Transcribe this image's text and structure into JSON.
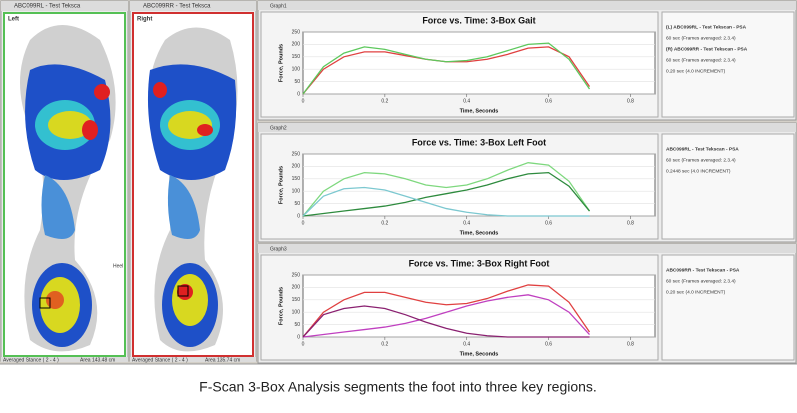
{
  "windows": {
    "left_foot": {
      "title": "ABC099RL - Test Teksca",
      "label": "Left",
      "region_label": "Heel",
      "status": "Averaged Stance ( 2 - 4 )",
      "area": "Area 143.48 cm"
    },
    "right_foot": {
      "title": "ABC099RR - Test Teksca",
      "label": "Right",
      "status": "Averaged Stance ( 2 - 4 )",
      "area": "Area 135.74 cm"
    }
  },
  "graphs": [
    {
      "window_title": "Graph1",
      "chart_data": {
        "type": "line",
        "title": "Force vs. Time: 3-Box Gait",
        "x_label": "Time, Seconds",
        "y_label": "Force, Pounds",
        "x": [
          0,
          0.05,
          0.1,
          0.15,
          0.2,
          0.25,
          0.3,
          0.35,
          0.4,
          0.45,
          0.5,
          0.55,
          0.6,
          0.65,
          0.7
        ],
        "series": [
          {
            "color": "#e04040",
            "values": [
              0,
              100,
              150,
              170,
              170,
              155,
              140,
              130,
              130,
              140,
              160,
              185,
              190,
              150,
              30
            ]
          },
          {
            "color": "#5cc85c",
            "values": [
              0,
              110,
              165,
              190,
              180,
              160,
              140,
              130,
              135,
              150,
              175,
              200,
              205,
              140,
              20
            ]
          }
        ],
        "xlim": [
          0,
          0.86
        ],
        "ylim": [
          0,
          250
        ],
        "xticks": [
          0,
          0.2,
          0.4,
          0.6,
          0.8
        ],
        "yticks": [
          0,
          50,
          100,
          150,
          200,
          250
        ]
      },
      "panel_lines": [
        "(L) ABC099RL - Test Tekscan - PSA",
        "60 sec (Frames averaged: 2.3.4)",
        "(R) ABC099RR - Test Tekscan - PSA",
        "60 sec (Frames averaged: 2.3.4)",
        "0.20 sec (4.0 INCREMENT)"
      ]
    },
    {
      "window_title": "Graph2",
      "chart_data": {
        "type": "line",
        "title": "Force vs. Time: 3-Box Left Foot",
        "x_label": "Time, Seconds",
        "y_label": "Force, Pounds",
        "x": [
          0,
          0.05,
          0.1,
          0.15,
          0.2,
          0.25,
          0.3,
          0.35,
          0.4,
          0.45,
          0.5,
          0.55,
          0.6,
          0.65,
          0.7
        ],
        "series": [
          {
            "color": "#7ed87e",
            "values": [
              0,
              100,
              150,
              175,
              170,
              150,
              125,
              115,
              125,
              150,
              185,
              215,
              205,
              140,
              20
            ]
          },
          {
            "color": "#2e8b3e",
            "values": [
              0,
              10,
              20,
              30,
              40,
              55,
              75,
              90,
              105,
              125,
              150,
              170,
              175,
              120,
              20
            ]
          },
          {
            "color": "#7cc8d0",
            "values": [
              0,
              80,
              110,
              115,
              105,
              80,
              55,
              30,
              15,
              5,
              0,
              0,
              0,
              0,
              0
            ]
          }
        ],
        "xlim": [
          0,
          0.86
        ],
        "ylim": [
          0,
          250
        ],
        "xticks": [
          0,
          0.2,
          0.4,
          0.6,
          0.8
        ],
        "yticks": [
          0,
          50,
          100,
          150,
          200,
          250
        ]
      },
      "panel_lines": [
        "ABC099RL - Test Tekscan - PSA",
        "60 sec (Frames averaged: 2.3.4)",
        "0.2448 sec (4.0 INCREMENT)"
      ]
    },
    {
      "window_title": "Graph3",
      "chart_data": {
        "type": "line",
        "title": "Force vs. Time: 3-Box Right Foot",
        "x_label": "Time, Seconds",
        "y_label": "Force, Pounds",
        "x": [
          0,
          0.05,
          0.1,
          0.15,
          0.2,
          0.25,
          0.3,
          0.35,
          0.4,
          0.45,
          0.5,
          0.55,
          0.6,
          0.65,
          0.7
        ],
        "series": [
          {
            "color": "#e04040",
            "values": [
              0,
              100,
              150,
              180,
              180,
              160,
              140,
              130,
              135,
              155,
              185,
              210,
              205,
              140,
              20
            ]
          },
          {
            "color": "#c040c0",
            "values": [
              0,
              10,
              20,
              30,
              40,
              55,
              75,
              100,
              125,
              145,
              160,
              170,
              150,
              100,
              10
            ]
          },
          {
            "color": "#8a2070",
            "values": [
              0,
              90,
              115,
              125,
              115,
              90,
              60,
              35,
              15,
              5,
              0,
              0,
              0,
              0,
              0
            ]
          }
        ],
        "xlim": [
          0,
          0.86
        ],
        "ylim": [
          0,
          250
        ],
        "xticks": [
          0,
          0.2,
          0.4,
          0.6,
          0.8
        ],
        "yticks": [
          0,
          50,
          100,
          150,
          200,
          250
        ]
      },
      "panel_lines": [
        "ABC099RR - Test Tekscan - PSA",
        "60 sec (Frames averaged: 2.3.4)",
        "0.20 sec (4.0 INCREMENT)"
      ]
    }
  ],
  "caption": "F-Scan 3-Box Analysis segments the foot into three key regions."
}
